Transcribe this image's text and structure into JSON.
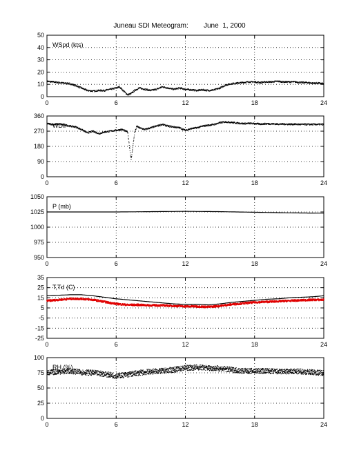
{
  "title": "Juneau SDI Meteogram:        June  1, 2000",
  "chart_data": [
    {
      "type": "line",
      "label": "WSpd (kts)",
      "ylim": [
        0,
        50
      ],
      "yticks": [
        0,
        10,
        20,
        30,
        40,
        50
      ],
      "xlim": [
        0,
        24
      ],
      "xticks": [
        0,
        6,
        12,
        18,
        24
      ],
      "grid": true,
      "series": [
        {
          "style": "dotted-black",
          "x": [
            0,
            0.5,
            1,
            1.5,
            2,
            2.5,
            3,
            3.5,
            4,
            4.5,
            5,
            5.5,
            6,
            6.3,
            6.6,
            7,
            7.3,
            7.6,
            8,
            8.5,
            9,
            9.5,
            10,
            10.5,
            11,
            11.5,
            12,
            12.5,
            13,
            13.5,
            14,
            14.5,
            15,
            15.5,
            16,
            16.5,
            17,
            17.5,
            18,
            18.5,
            19,
            19.5,
            20,
            20.5,
            21,
            21.5,
            22,
            22.5,
            23,
            23.5,
            24
          ],
          "y": [
            12.5,
            12,
            11.5,
            11,
            10.5,
            9,
            7,
            5,
            4.5,
            5,
            5,
            6,
            7,
            8,
            5,
            1.5,
            2.5,
            5,
            7,
            6,
            5,
            6,
            8,
            7,
            6,
            7,
            6,
            5.5,
            5,
            5.5,
            5,
            5.5,
            7,
            9.5,
            10.5,
            11,
            11.5,
            12,
            12,
            11.5,
            12,
            12,
            12.5,
            12,
            12,
            12,
            11.5,
            11.5,
            11,
            11,
            10.5
          ]
        }
      ]
    },
    {
      "type": "line",
      "label": "WDir",
      "ylim": [
        0,
        360
      ],
      "yticks": [
        0,
        90,
        180,
        270,
        360
      ],
      "xlim": [
        0,
        24
      ],
      "xticks": [
        0,
        6,
        12,
        18,
        24
      ],
      "grid": true,
      "series": [
        {
          "style": "dotted-black",
          "x": [
            0,
            0.5,
            1,
            1.5,
            2,
            2.5,
            3,
            3.5,
            4,
            4.5,
            5,
            5.5,
            6,
            6.5,
            7,
            7.3,
            7.6,
            7.8,
            8,
            8.5,
            9,
            9.5,
            10,
            10.5,
            11,
            11.5,
            12,
            12.5,
            13,
            13.5,
            14,
            14.5,
            15,
            15.5,
            16,
            16.5,
            17,
            17.5,
            18,
            18.5,
            19,
            19.5,
            20,
            20.5,
            21,
            21.5,
            22,
            22.5,
            23,
            23.5,
            24
          ],
          "y": [
            315,
            310,
            312,
            308,
            300,
            295,
            280,
            260,
            270,
            255,
            265,
            270,
            275,
            280,
            265,
            100,
            260,
            300,
            290,
            280,
            290,
            300,
            310,
            300,
            295,
            290,
            275,
            285,
            290,
            300,
            305,
            310,
            320,
            325,
            322,
            318,
            315,
            316,
            315,
            312,
            314,
            313,
            312,
            312,
            311,
            311,
            310,
            310,
            310,
            310,
            310
          ]
        }
      ]
    },
    {
      "type": "line",
      "label": "P (mb)",
      "ylim": [
        950,
        1050
      ],
      "yticks": [
        950,
        975,
        1000,
        1025,
        1050
      ],
      "xlim": [
        0,
        24
      ],
      "xticks": [
        0,
        6,
        12,
        18,
        24
      ],
      "grid": true,
      "series": [
        {
          "style": "solid-black",
          "x": [
            0,
            3,
            6,
            9,
            12,
            15,
            18,
            21,
            24
          ],
          "y": [
            1025,
            1025,
            1025,
            1025.5,
            1026,
            1025.5,
            1024.5,
            1023.5,
            1023
          ]
        }
      ]
    },
    {
      "type": "line",
      "label": "T,Td (C)",
      "ylim": [
        -25,
        35
      ],
      "yticks": [
        -25,
        -15,
        -5,
        5,
        15,
        25,
        35
      ],
      "xlim": [
        0,
        24
      ],
      "xticks": [
        0,
        6,
        12,
        18,
        24
      ],
      "grid": true,
      "series": [
        {
          "style": "solid-black",
          "x": [
            0,
            1,
            2,
            3,
            4,
            5,
            6,
            7,
            8,
            9,
            10,
            11,
            12,
            13,
            14,
            15,
            16,
            17,
            18,
            19,
            20,
            21,
            22,
            23,
            24
          ],
          "y": [
            17,
            17.5,
            18,
            18,
            17,
            15.5,
            14,
            13,
            12,
            11,
            10,
            9,
            8.5,
            8.5,
            8,
            9,
            10.5,
            11.5,
            12.5,
            13.5,
            14,
            15,
            15.5,
            16,
            17
          ]
        },
        {
          "style": "dotted-red",
          "x": [
            0,
            1,
            2,
            3,
            4,
            5,
            6,
            7,
            8,
            9,
            10,
            11,
            12,
            13,
            14,
            15,
            16,
            17,
            18,
            19,
            20,
            21,
            22,
            23,
            24
          ],
          "y": [
            12,
            13,
            14,
            14,
            13,
            11,
            9,
            8,
            8,
            7.5,
            7.5,
            7,
            6.5,
            6.5,
            6,
            7,
            8.5,
            9.5,
            10.5,
            11,
            11.5,
            12,
            12.5,
            13,
            13
          ]
        }
      ]
    },
    {
      "type": "scatter",
      "label": "RH (%)",
      "ylim": [
        0,
        100
      ],
      "yticks": [
        0,
        25,
        50,
        75,
        100
      ],
      "xlim": [
        0,
        24
      ],
      "xticks": [
        0,
        6,
        12,
        18,
        24
      ],
      "grid": true,
      "series": [
        {
          "style": "dots-black",
          "x": [
            0,
            1,
            2,
            3,
            4,
            5,
            6,
            7,
            8,
            9,
            10,
            11,
            12,
            13,
            14,
            15,
            16,
            17,
            18,
            19,
            20,
            21,
            22,
            23,
            24
          ],
          "y": [
            75,
            77,
            78,
            76,
            75,
            73,
            70,
            72,
            75,
            77,
            78,
            80,
            83,
            84,
            83,
            82,
            80,
            78,
            78,
            78,
            77,
            77,
            77,
            76,
            75
          ]
        }
      ]
    }
  ]
}
